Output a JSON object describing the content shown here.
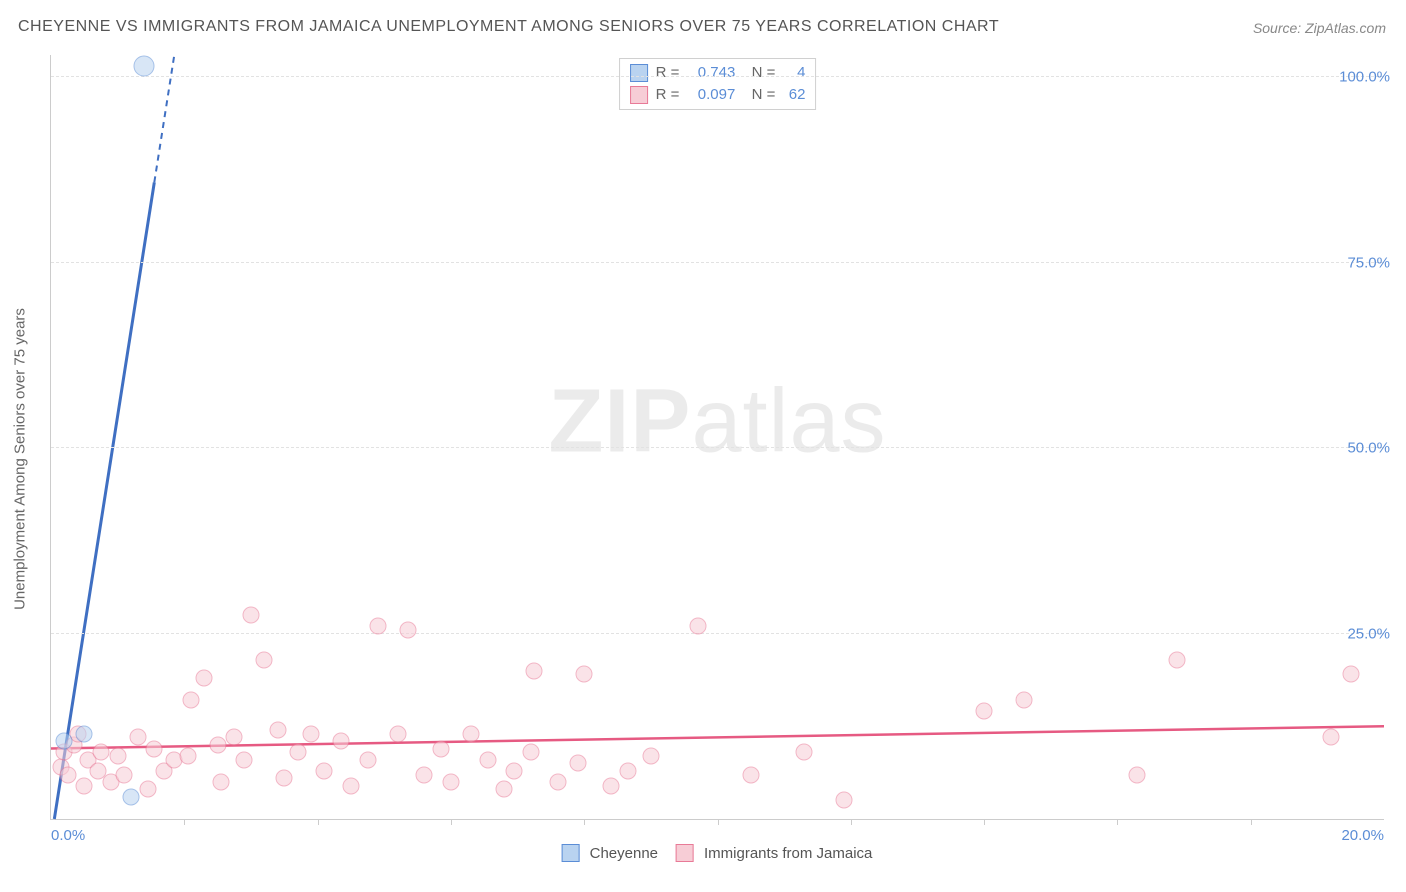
{
  "title": "CHEYENNE VS IMMIGRANTS FROM JAMAICA UNEMPLOYMENT AMONG SENIORS OVER 75 YEARS CORRELATION CHART",
  "source": "Source: ZipAtlas.com",
  "watermark_bold": "ZIP",
  "watermark_rest": "atlas",
  "y_axis_label": "Unemployment Among Seniors over 75 years",
  "axes": {
    "xmin": 0.0,
    "xmax": 20.0,
    "ymin": 0.0,
    "ymax": 103.0,
    "x_tick_step": 2.0,
    "x_start_label": "0.0%",
    "x_end_label": "20.0%",
    "y_ticks": [
      25.0,
      50.0,
      75.0,
      100.0
    ],
    "y_tick_labels": [
      "25.0%",
      "50.0%",
      "75.0%",
      "100.0%"
    ],
    "grid_color": "#e2e2e2",
    "axis_color": "#cccccc",
    "tick_label_color": "#5b8dd6"
  },
  "colors": {
    "series_a_fill": "#b9d3f0",
    "series_a_border": "#5b8dd6",
    "series_a_line": "#3f6fc2",
    "series_b_fill": "#f7cdd6",
    "series_b_border": "#e87a97",
    "series_b_line": "#e65a82",
    "background": "#ffffff"
  },
  "stats": {
    "rows": [
      {
        "series": "a",
        "r_label": "R =",
        "r_value": "0.743",
        "n_label": "N =",
        "n_value": "4"
      },
      {
        "series": "b",
        "r_label": "R =",
        "r_value": "0.097",
        "n_label": "N =",
        "n_value": "62"
      }
    ]
  },
  "legend": {
    "a_label": "Cheyenne",
    "b_label": "Immigrants from Jamaica"
  },
  "series_a": {
    "type": "scatter",
    "points": [
      {
        "x": 1.4,
        "y": 101.5,
        "size": "big"
      },
      {
        "x": 0.2,
        "y": 10.5,
        "size": "normal"
      },
      {
        "x": 0.5,
        "y": 11.5,
        "size": "normal"
      },
      {
        "x": 1.2,
        "y": 3.0,
        "size": "normal"
      }
    ],
    "trend": {
      "x1": 0.05,
      "y1": 0.0,
      "x2": 1.85,
      "y2": 103.0,
      "dashed_from_x": 1.55
    }
  },
  "series_b": {
    "type": "scatter",
    "points": [
      {
        "x": 0.15,
        "y": 7.0
      },
      {
        "x": 0.2,
        "y": 9.0
      },
      {
        "x": 0.25,
        "y": 6.0
      },
      {
        "x": 0.35,
        "y": 10.0
      },
      {
        "x": 0.4,
        "y": 11.5
      },
      {
        "x": 0.5,
        "y": 4.5
      },
      {
        "x": 0.55,
        "y": 8.0
      },
      {
        "x": 0.7,
        "y": 6.5
      },
      {
        "x": 0.75,
        "y": 9.0
      },
      {
        "x": 0.9,
        "y": 5.0
      },
      {
        "x": 1.0,
        "y": 8.5
      },
      {
        "x": 1.1,
        "y": 6.0
      },
      {
        "x": 1.3,
        "y": 11.0
      },
      {
        "x": 1.45,
        "y": 4.0
      },
      {
        "x": 1.55,
        "y": 9.5
      },
      {
        "x": 1.7,
        "y": 6.5
      },
      {
        "x": 1.85,
        "y": 8.0
      },
      {
        "x": 2.05,
        "y": 8.5
      },
      {
        "x": 2.1,
        "y": 16.0
      },
      {
        "x": 2.3,
        "y": 19.0
      },
      {
        "x": 2.5,
        "y": 10.0
      },
      {
        "x": 2.55,
        "y": 5.0
      },
      {
        "x": 2.75,
        "y": 11.0
      },
      {
        "x": 2.9,
        "y": 8.0
      },
      {
        "x": 3.0,
        "y": 27.5
      },
      {
        "x": 3.2,
        "y": 21.5
      },
      {
        "x": 3.4,
        "y": 12.0
      },
      {
        "x": 3.5,
        "y": 5.5
      },
      {
        "x": 3.7,
        "y": 9.0
      },
      {
        "x": 3.9,
        "y": 11.5
      },
      {
        "x": 4.1,
        "y": 6.5
      },
      {
        "x": 4.35,
        "y": 10.5
      },
      {
        "x": 4.5,
        "y": 4.5
      },
      {
        "x": 4.75,
        "y": 8.0
      },
      {
        "x": 4.9,
        "y": 26.0
      },
      {
        "x": 5.2,
        "y": 11.5
      },
      {
        "x": 5.35,
        "y": 25.5
      },
      {
        "x": 5.6,
        "y": 6.0
      },
      {
        "x": 5.85,
        "y": 9.5
      },
      {
        "x": 6.0,
        "y": 5.0
      },
      {
        "x": 6.3,
        "y": 11.5
      },
      {
        "x": 6.55,
        "y": 8.0
      },
      {
        "x": 6.8,
        "y": 4.0
      },
      {
        "x": 6.95,
        "y": 6.5
      },
      {
        "x": 7.2,
        "y": 9.0
      },
      {
        "x": 7.25,
        "y": 20.0
      },
      {
        "x": 7.6,
        "y": 5.0
      },
      {
        "x": 7.9,
        "y": 7.5
      },
      {
        "x": 8.0,
        "y": 19.5
      },
      {
        "x": 8.4,
        "y": 4.5
      },
      {
        "x": 8.65,
        "y": 6.5
      },
      {
        "x": 9.0,
        "y": 8.5
      },
      {
        "x": 9.7,
        "y": 26.0
      },
      {
        "x": 10.5,
        "y": 6.0
      },
      {
        "x": 11.3,
        "y": 9.0
      },
      {
        "x": 11.9,
        "y": 2.5
      },
      {
        "x": 14.0,
        "y": 14.5
      },
      {
        "x": 14.6,
        "y": 16.0
      },
      {
        "x": 16.3,
        "y": 6.0
      },
      {
        "x": 16.9,
        "y": 21.5
      },
      {
        "x": 19.2,
        "y": 11.0
      },
      {
        "x": 19.5,
        "y": 19.5
      }
    ],
    "trend": {
      "x1": 0.0,
      "y1": 9.5,
      "x2": 20.0,
      "y2": 12.5
    }
  }
}
